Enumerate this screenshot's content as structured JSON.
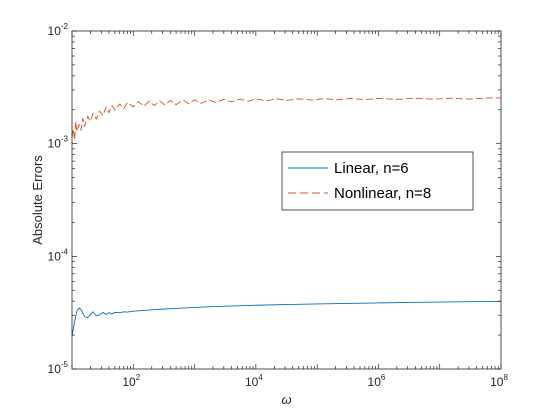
{
  "chart_data": {
    "type": "line",
    "xscale": "log",
    "yscale": "log",
    "xlim": [
      10,
      100000000
    ],
    "ylim": [
      1e-05,
      0.01
    ],
    "xlabel": "ω",
    "ylabel": "Absolute Errors",
    "xticks": [
      {
        "value": 100,
        "base": "10",
        "exp": "2"
      },
      {
        "value": 10000,
        "base": "10",
        "exp": "4"
      },
      {
        "value": 1000000,
        "base": "10",
        "exp": "6"
      },
      {
        "value": 100000000,
        "base": "10",
        "exp": "8"
      }
    ],
    "yticks": [
      {
        "value": 1e-05,
        "base": "10",
        "exp": "-5"
      },
      {
        "value": 0.0001,
        "base": "10",
        "exp": "-4"
      },
      {
        "value": 0.001,
        "base": "10",
        "exp": "-3"
      },
      {
        "value": 0.01,
        "base": "10",
        "exp": "-2"
      }
    ],
    "grid": false,
    "legend_position": "center-right",
    "series": [
      {
        "name": "Linear, n=6",
        "color": "#0072BD",
        "style": "solid",
        "x": [
          10,
          11,
          12,
          13,
          14,
          15,
          16,
          18,
          20,
          22,
          25,
          28,
          32,
          36,
          40,
          45,
          50,
          60,
          70,
          80,
          100,
          130,
          170,
          220,
          300,
          450,
          700,
          1000,
          2000,
          5000,
          10000,
          30000,
          100000,
          300000,
          1000000,
          3000000,
          10000000,
          30000000,
          100000000
        ],
        "y": [
          1.95e-05,
          2.62e-05,
          3.25e-05,
          3.48e-05,
          3.38e-05,
          3.12e-05,
          2.92e-05,
          2.85e-05,
          3.06e-05,
          3.22e-05,
          2.96e-05,
          3.02e-05,
          3.18e-05,
          3.05e-05,
          3.16e-05,
          3.09e-05,
          3.18e-05,
          3.16e-05,
          3.22e-05,
          3.2e-05,
          3.26e-05,
          3.29e-05,
          3.33e-05,
          3.36e-05,
          3.4e-05,
          3.44e-05,
          3.48e-05,
          3.52e-05,
          3.58e-05,
          3.64e-05,
          3.68e-05,
          3.73e-05,
          3.78e-05,
          3.82e-05,
          3.86e-05,
          3.9e-05,
          3.93e-05,
          3.96e-05,
          3.98e-05
        ]
      },
      {
        "name": "Nonlinear, n=8",
        "color": "#D95319",
        "style": "dashed",
        "x": [
          10,
          10.5,
          11,
          11.5,
          12,
          13,
          14,
          15,
          16,
          18,
          20,
          22,
          25,
          28,
          32,
          36,
          40,
          45,
          50,
          60,
          70,
          80,
          100,
          120,
          150,
          180,
          220,
          270,
          330,
          400,
          500,
          650,
          800,
          1000,
          1300,
          1700,
          2200,
          3000,
          4000,
          5500,
          7500,
          10000,
          15000,
          22000,
          32000,
          50000,
          80000,
          130000,
          200000,
          350000,
          600000,
          1000000,
          2000000,
          4000000,
          8000000,
          15000000,
          30000000,
          60000000,
          100000000
        ],
        "y": [
          0.00115,
          0.00135,
          0.00108,
          0.00158,
          0.00128,
          0.00148,
          0.00132,
          0.00168,
          0.00142,
          0.00175,
          0.00158,
          0.00185,
          0.00165,
          0.00195,
          0.00178,
          0.00212,
          0.00188,
          0.00218,
          0.00198,
          0.00225,
          0.00205,
          0.00232,
          0.00212,
          0.00236,
          0.00215,
          0.00238,
          0.00218,
          0.0024,
          0.0022,
          0.00242,
          0.00222,
          0.00244,
          0.00226,
          0.00245,
          0.00228,
          0.00246,
          0.00232,
          0.00247,
          0.00235,
          0.00248,
          0.00238,
          0.00249,
          0.0024,
          0.0025,
          0.00242,
          0.0025,
          0.00244,
          0.00251,
          0.00245,
          0.00252,
          0.00246,
          0.00252,
          0.00247,
          0.00253,
          0.00248,
          0.00253,
          0.00249,
          0.00254,
          0.00255
        ]
      }
    ]
  }
}
